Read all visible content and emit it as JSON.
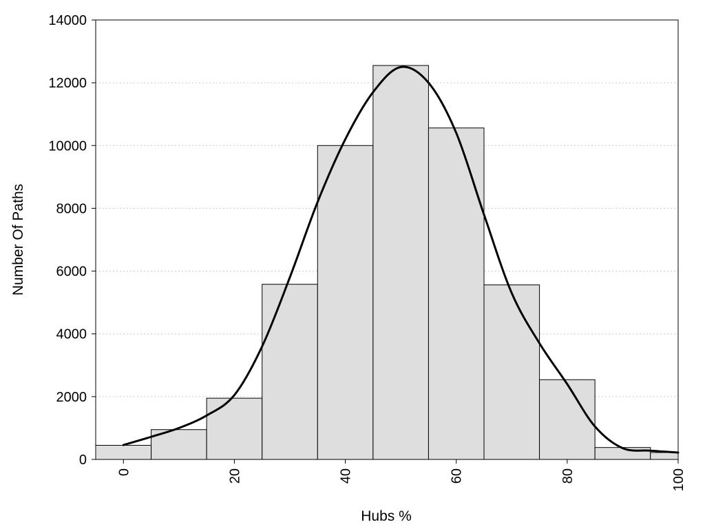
{
  "chart_data": {
    "type": "bar",
    "xlabel": "Hubs %",
    "ylabel": "Number Of Paths",
    "xlim": [
      -5,
      100
    ],
    "ylim": [
      0,
      14000
    ],
    "x_ticks": [
      "0",
      "20",
      "40",
      "60",
      "80",
      "100"
    ],
    "y_ticks": [
      "0",
      "2000",
      "4000",
      "6000",
      "8000",
      "10000",
      "12000",
      "14000"
    ],
    "grid": "horizontal dotted",
    "bins": [
      {
        "center": 0,
        "value": 450
      },
      {
        "center": 10,
        "value": 950
      },
      {
        "center": 20,
        "value": 1950
      },
      {
        "center": 30,
        "value": 5580
      },
      {
        "center": 40,
        "value": 10000
      },
      {
        "center": 50,
        "value": 12550
      },
      {
        "center": 60,
        "value": 10560
      },
      {
        "center": 70,
        "value": 5560
      },
      {
        "center": 80,
        "value": 2540
      },
      {
        "center": 90,
        "value": 380
      },
      {
        "center": 100,
        "value": 220
      }
    ],
    "bin_width": 10,
    "density_curve": [
      [
        0,
        460
      ],
      [
        5,
        720
      ],
      [
        10,
        1000
      ],
      [
        15,
        1400
      ],
      [
        20,
        2050
      ],
      [
        25,
        3600
      ],
      [
        30,
        5800
      ],
      [
        35,
        8200
      ],
      [
        40,
        10200
      ],
      [
        45,
        11700
      ],
      [
        50,
        12500
      ],
      [
        55,
        12000
      ],
      [
        60,
        10400
      ],
      [
        65,
        7800
      ],
      [
        70,
        5300
      ],
      [
        75,
        3700
      ],
      [
        80,
        2400
      ],
      [
        85,
        1050
      ],
      [
        90,
        360
      ],
      [
        95,
        280
      ],
      [
        100,
        220
      ]
    ]
  }
}
